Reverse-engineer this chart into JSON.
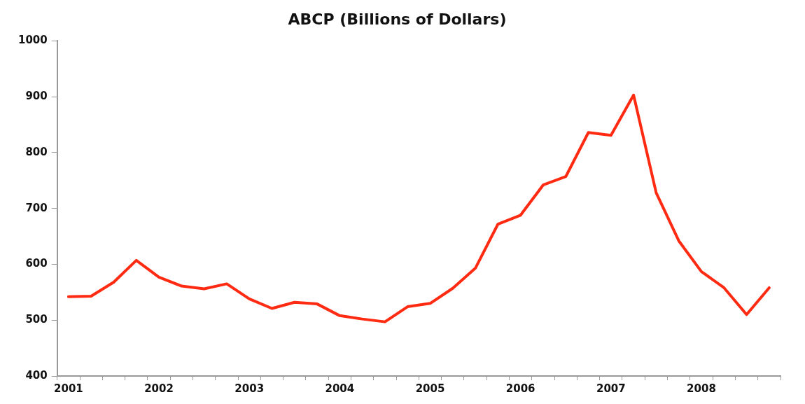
{
  "chart_data": {
    "type": "line",
    "title": "ABCP (Billions of Dollars)",
    "categories": [
      "2001",
      null,
      null,
      null,
      "2002",
      null,
      null,
      null,
      "2003",
      null,
      null,
      null,
      "2004",
      null,
      null,
      null,
      "2005",
      null,
      null,
      null,
      "2006",
      null,
      null,
      null,
      "2007",
      null,
      null,
      null,
      "2008",
      null,
      null,
      null
    ],
    "series": [
      {
        "color": "#ff2a12",
        "values": [
          542,
          543,
          568,
          607,
          577,
          561,
          556,
          565,
          538,
          521,
          532,
          529,
          508,
          502,
          497,
          524,
          530,
          557,
          593,
          672,
          688,
          742,
          757,
          836,
          831,
          903,
          728,
          642,
          587,
          558,
          510,
          558
        ]
      }
    ],
    "ylim": [
      400,
      1000
    ],
    "yticks": [
      400,
      500,
      600,
      700,
      800,
      900,
      1000
    ],
    "grid": false,
    "legend": false,
    "marker": "none",
    "line_style": "solid"
  }
}
